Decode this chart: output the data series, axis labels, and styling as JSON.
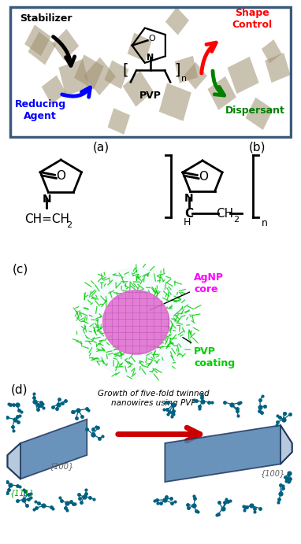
{
  "stabilizer_text": "Stabilizer",
  "reducing_agent_text": "Reducing\nAgent",
  "shape_control_text": "Shape\nControl",
  "dispersant_text": "Dispersant",
  "pvp_text": "PVP",
  "n_text": "n",
  "panel_a_label": "(a)",
  "panel_b_label": "(b)",
  "panel_c_label": "(c)",
  "panel_d_label": "(d)",
  "agnp_core_text": "AgNP\ncore",
  "pvp_coating_text": "PVP\ncoating",
  "nanowire_text": "Growth of five-fold twinned\nnanowires using PVP",
  "bg_tan": "#c8b090",
  "border_color": "#3a5a7a",
  "stabilizer_color": "#000000",
  "reducing_agent_color": "#0000ff",
  "shape_control_color": "#ff0000",
  "dispersant_color": "#008000",
  "agnp_color": "#e070d0",
  "pvp_coating_color": "#00cc00",
  "nanowire_arrow_color": "#cc0000",
  "wire_color": "#5080b0",
  "wire_edge": "#203860",
  "wire_tip_color": "#aac0d8",
  "molecule_color": "#006080",
  "fig_bg": "#ffffff"
}
